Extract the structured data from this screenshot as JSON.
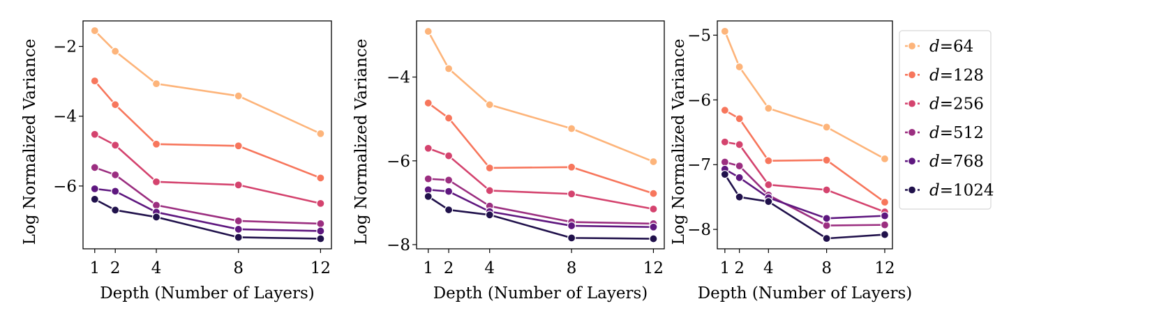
{
  "legend": {
    "placement": "right-outside",
    "entries": [
      {
        "prefix": "d",
        "label": "=64"
      },
      {
        "prefix": "d",
        "label": "=128"
      },
      {
        "prefix": "d",
        "label": "=256"
      },
      {
        "prefix": "d",
        "label": "=512"
      },
      {
        "prefix": "d",
        "label": "=768"
      },
      {
        "prefix": "d",
        "label": "=1024"
      }
    ]
  },
  "colors": [
    "#fdb47a",
    "#f7765c",
    "#d4436e",
    "#9b2e80",
    "#5e177f",
    "#20114b"
  ],
  "chart_data": [
    {
      "type": "line",
      "xlabel": "Depth (Number of Layers)",
      "ylabel": "Log Normalized Variance",
      "x": [
        1,
        2,
        4,
        8,
        12
      ],
      "xticks": [
        "1",
        "2",
        "4",
        "8",
        "12"
      ],
      "yticks": [
        -2,
        -4,
        -6
      ],
      "ytick_labels": [
        "−2",
        "−4",
        "−6"
      ],
      "xlim": [
        0.43,
        12.53
      ],
      "ylim": [
        -7.8,
        -1.27
      ],
      "grid": false,
      "series": [
        {
          "name": "d=64",
          "values": [
            -1.55,
            -2.14,
            -3.07,
            -3.42,
            -4.5
          ]
        },
        {
          "name": "d=128",
          "values": [
            -2.99,
            -3.67,
            -4.8,
            -4.85,
            -5.77
          ]
        },
        {
          "name": "d=256",
          "values": [
            -4.52,
            -4.83,
            -5.88,
            -5.97,
            -6.5
          ]
        },
        {
          "name": "d=512",
          "values": [
            -5.47,
            -5.68,
            -6.55,
            -7.0,
            -7.08
          ]
        },
        {
          "name": "d=768",
          "values": [
            -6.08,
            -6.15,
            -6.75,
            -7.24,
            -7.29
          ]
        },
        {
          "name": "d=1024",
          "values": [
            -6.38,
            -6.69,
            -6.89,
            -7.47,
            -7.51
          ]
        }
      ]
    },
    {
      "type": "line",
      "xlabel": "Depth (Number of Layers)",
      "ylabel": "Log Normalized Variance",
      "x": [
        1,
        2,
        4,
        8,
        12
      ],
      "xticks": [
        "1",
        "2",
        "4",
        "8",
        "12"
      ],
      "yticks": [
        -4,
        -6,
        -8
      ],
      "ytick_labels": [
        "−4",
        "−6",
        "−8"
      ],
      "xlim": [
        0.43,
        12.53
      ],
      "ylim": [
        -8.1,
        -2.66
      ],
      "grid": false,
      "series": [
        {
          "name": "d=64",
          "values": [
            -2.91,
            -3.8,
            -4.66,
            -5.23,
            -6.02
          ]
        },
        {
          "name": "d=128",
          "values": [
            -4.62,
            -4.98,
            -6.17,
            -6.15,
            -6.78
          ]
        },
        {
          "name": "d=256",
          "values": [
            -5.7,
            -5.88,
            -6.71,
            -6.79,
            -7.15
          ]
        },
        {
          "name": "d=512",
          "values": [
            -6.43,
            -6.46,
            -7.08,
            -7.46,
            -7.5
          ]
        },
        {
          "name": "d=768",
          "values": [
            -6.69,
            -6.73,
            -7.21,
            -7.55,
            -7.58
          ]
        },
        {
          "name": "d=1024",
          "values": [
            -6.85,
            -7.17,
            -7.29,
            -7.84,
            -7.86
          ]
        }
      ]
    },
    {
      "type": "line",
      "xlabel": "Depth (Number of Layers)",
      "ylabel": "Log Normalized Variance",
      "x": [
        1,
        2,
        4,
        8,
        12
      ],
      "xticks": [
        "1",
        "2",
        "4",
        "8",
        "12"
      ],
      "yticks": [
        -5,
        -6,
        -7,
        -8
      ],
      "ytick_labels": [
        "−5",
        "−6",
        "−7",
        "−8"
      ],
      "xlim": [
        0.48,
        12.53
      ],
      "ylim": [
        -8.3,
        -4.78
      ],
      "grid": false,
      "series": [
        {
          "name": "d=64",
          "values": [
            -4.94,
            -5.49,
            -6.13,
            -6.42,
            -6.91
          ]
        },
        {
          "name": "d=128",
          "values": [
            -6.16,
            -6.29,
            -6.94,
            -6.93,
            -7.58
          ]
        },
        {
          "name": "d=256",
          "values": [
            -6.65,
            -6.69,
            -7.31,
            -7.39,
            -7.73
          ]
        },
        {
          "name": "d=512",
          "values": [
            -6.96,
            -7.02,
            -7.47,
            -7.94,
            -7.93
          ]
        },
        {
          "name": "d=768",
          "values": [
            -7.07,
            -7.2,
            -7.51,
            -7.83,
            -7.79
          ]
        },
        {
          "name": "d=1024",
          "values": [
            -7.15,
            -7.5,
            -7.57,
            -8.14,
            -8.08
          ]
        }
      ]
    }
  ]
}
